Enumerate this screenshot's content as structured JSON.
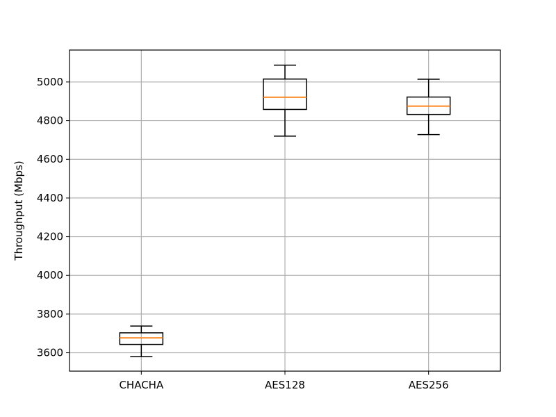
{
  "chart_data": {
    "type": "boxplot",
    "title": "",
    "xlabel": "",
    "ylabel": "Throughput (Mbps)",
    "ylim": [
      3505,
      5165
    ],
    "grid": true,
    "yticks": [
      3600,
      3800,
      4000,
      4200,
      4400,
      4600,
      4800,
      5000
    ],
    "categories": [
      "CHACHA",
      "AES128",
      "AES256"
    ],
    "boxes": [
      {
        "category": "CHACHA",
        "whisker_low": 3580,
        "q1": 3643,
        "median": 3677,
        "q3": 3703,
        "whisker_high": 3738
      },
      {
        "category": "AES128",
        "whisker_low": 4720,
        "q1": 4858,
        "median": 4921,
        "q3": 5015,
        "whisker_high": 5087
      },
      {
        "category": "AES256",
        "whisker_low": 4728,
        "q1": 4832,
        "median": 4875,
        "q3": 4922,
        "whisker_high": 5014
      }
    ],
    "colors": {
      "box": "#000000",
      "median": "#ff7f0e",
      "grid": "#b0b0b0",
      "frame": "#000000"
    }
  }
}
